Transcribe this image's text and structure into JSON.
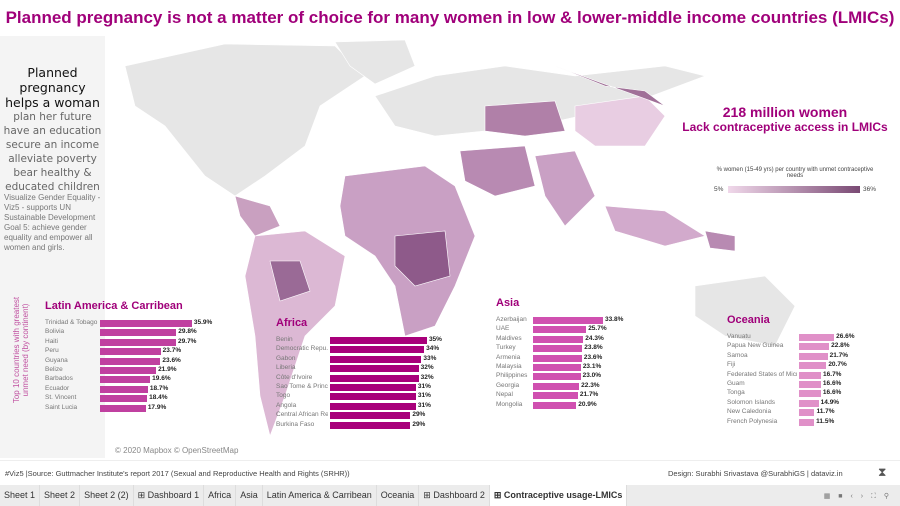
{
  "title": "Planned pregnancy is not a matter of choice for many women in low & lower-middle income countries (LMICs)",
  "left": {
    "heading": [
      "Planned pregnancy",
      "helps a woman"
    ],
    "benefits": [
      "plan her future",
      "have an education",
      "secure an income",
      "alleviate poverty",
      "bear healthy &",
      "educated children"
    ],
    "viz5": "Visualize Gender Equality - Viz5 - supports UN Sustainable Development Goal 5: achieve gender equality and empower all women and girls."
  },
  "stat": {
    "headline": "218 million women",
    "sub": "Lack contraceptive access in LMICs"
  },
  "legend": {
    "title": "% women (15-49 yrs) per country with unmet contraceptive needs",
    "min": "5%",
    "max": "36%",
    "colors": [
      "#f0d8ea",
      "#7a4a74"
    ]
  },
  "map_credit": "© 2020 Mapbox © OpenStreetMap",
  "y_axis_label": "Top 10 countries with greatest unmet need (by continent)",
  "chart_data": [
    {
      "type": "bar",
      "orientation": "horizontal",
      "title": "Latin America & Carribean",
      "color": "#c040a0",
      "categories": [
        "Trinidad & Tobago",
        "Bolivia",
        "Haiti",
        "Peru",
        "Guyana",
        "Belize",
        "Barbados",
        "Ecuador",
        "St. Vincent",
        "Saint Lucia"
      ],
      "values": [
        35.9,
        29.8,
        29.7,
        23.7,
        23.6,
        21.9,
        19.6,
        18.7,
        18.4,
        17.9
      ],
      "labels": [
        "35.9%",
        "29.8%",
        "29.7%",
        "23.7%",
        "23.6%",
        "21.9%",
        "19.6%",
        "18.7%",
        "18.4%",
        "17.9%"
      ]
    },
    {
      "type": "bar",
      "orientation": "horizontal",
      "title": "Africa",
      "color": "#a8007a",
      "categories": [
        "Benin",
        "Democratic Repu..",
        "Gabon",
        "Liberia",
        "Côte d'Ivoire",
        "Sao Tome & Princ..",
        "Togo",
        "Angola",
        "Central African Re..",
        "Burkina Faso"
      ],
      "values": [
        35,
        34,
        33,
        32,
        32,
        31,
        31,
        31,
        29,
        29
      ],
      "labels": [
        "35%",
        "34%",
        "33%",
        "32%",
        "32%",
        "31%",
        "31%",
        "31%",
        "29%",
        "29%"
      ]
    },
    {
      "type": "bar",
      "orientation": "horizontal",
      "title": "Asia",
      "color": "#d050b0",
      "categories": [
        "Azerbaijan",
        "UAE",
        "Maldives",
        "Turkey",
        "Armenia",
        "Malaysia",
        "Philippines",
        "Georgia",
        "Nepal",
        "Mongolia"
      ],
      "values": [
        33.8,
        25.7,
        24.3,
        23.8,
        23.6,
        23.1,
        23.0,
        22.3,
        21.7,
        20.9
      ],
      "labels": [
        "33.8%",
        "25.7%",
        "24.3%",
        "23.8%",
        "23.6%",
        "23.1%",
        "23.0%",
        "22.3%",
        "21.7%",
        "20.9%"
      ]
    },
    {
      "type": "bar",
      "orientation": "horizontal",
      "title": "Oceania",
      "color": "#e090c8",
      "categories": [
        "Vanuatu",
        "Papua New Guinea",
        "Samoa",
        "Fiji",
        "Federated States of Micr..",
        "Guam",
        "Tonga",
        "Solomon Islands",
        "New Caledonia",
        "French Polynesia"
      ],
      "values": [
        26.6,
        22.8,
        21.7,
        20.7,
        16.7,
        16.6,
        16.6,
        14.9,
        11.7,
        11.5
      ],
      "labels": [
        "26.6%",
        "22.8%",
        "21.7%",
        "20.7%",
        "16.7%",
        "16.6%",
        "16.6%",
        "14.9%",
        "11.7%",
        "11.5%"
      ]
    }
  ],
  "footer": {
    "source": "#Viz5 |Source: Guttmacher Institute's report 2017 (Sexual and Reproductive Health and Rights (SRHR))",
    "design": "Design: Surabhi Srivastava  @SurabhiGS | dataviz.in"
  },
  "tabs": [
    {
      "label": "Sheet 1"
    },
    {
      "label": "Sheet 2"
    },
    {
      "label": "Sheet 2 (2)"
    },
    {
      "label": "⊞ Dashboard 1"
    },
    {
      "label": "Africa"
    },
    {
      "label": "Asia"
    },
    {
      "label": "Latin America & Carribean"
    },
    {
      "label": "Oceania"
    },
    {
      "label": "⊞ Dashboard 2"
    },
    {
      "label": "⊞ Contraceptive usage-LMICs",
      "active": true
    }
  ],
  "tab_controls": "▦ ■ ‹ › ⛶ ⚲"
}
